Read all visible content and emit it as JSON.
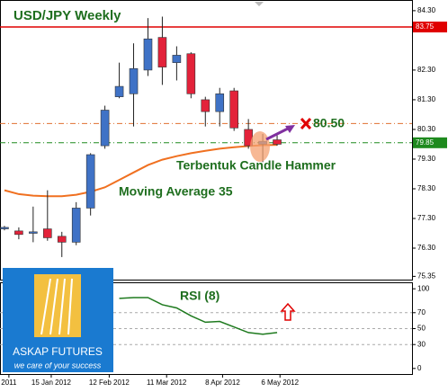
{
  "chart_data": {
    "type": "candlestick",
    "title": "USD/JPY Weekly",
    "xlim": [
      -0.31,
      28.4
    ],
    "ylim": [
      75.21,
      84.66
    ],
    "candles": {
      "open": [
        76.95,
        76.88,
        76.8,
        76.95,
        76.7,
        76.5,
        77.65,
        79.75,
        81.4,
        81.5,
        82.3,
        83.4,
        82.55,
        82.85,
        81.3,
        80.9,
        81.6,
        80.3,
        79.8,
        79.95
      ],
      "close": [
        77.0,
        76.76,
        76.85,
        76.65,
        76.5,
        77.65,
        79.45,
        80.95,
        81.75,
        82.35,
        83.35,
        82.4,
        82.8,
        81.5,
        80.9,
        81.5,
        80.35,
        79.75,
        79.9,
        79.8
      ],
      "high": [
        77.05,
        77.0,
        77.7,
        78.25,
        76.85,
        77.85,
        79.5,
        81.1,
        82.55,
        83.2,
        84.05,
        84.1,
        83.1,
        82.9,
        81.4,
        81.7,
        81.7,
        80.65,
        80.15,
        80.1
      ],
      "low": [
        76.9,
        76.6,
        76.5,
        76.55,
        76.0,
        76.4,
        77.4,
        79.65,
        81.35,
        80.4,
        82.1,
        81.8,
        81.95,
        81.35,
        80.4,
        80.4,
        80.25,
        79.65,
        79.2,
        79.75
      ],
      "up_color": "#3f72c6",
      "down_color": "#e3223a"
    },
    "moving_average": {
      "name": "Moving Average 35",
      "color": "#f07020",
      "values": [
        78.25,
        78.12,
        78.07,
        78.05,
        78.05,
        78.1,
        78.2,
        78.35,
        78.6,
        78.85,
        79.1,
        79.28,
        79.4,
        79.5,
        79.58,
        79.65,
        79.7,
        79.74,
        79.77,
        79.78
      ]
    },
    "yticks": [
      {
        "value": 84.3,
        "label": "84.30"
      },
      {
        "value": 82.3,
        "label": "82.30"
      },
      {
        "value": 81.3,
        "label": "81.30"
      },
      {
        "value": 80.3,
        "label": "80.30"
      },
      {
        "value": 79.3,
        "label": "79.30"
      },
      {
        "value": 78.3,
        "label": "78.30"
      },
      {
        "value": 77.3,
        "label": "77.30"
      },
      {
        "value": 76.3,
        "label": "76.30"
      },
      {
        "value": 75.35,
        "label": "75.35"
      }
    ],
    "levels": [
      {
        "value": 83.75,
        "label": "83.75",
        "color": "#e00000",
        "style": "solid"
      },
      {
        "value": 79.85,
        "label": "79.85",
        "color": "#1e8a1e",
        "style": "dashdot"
      }
    ],
    "target": {
      "value": 80.5,
      "label": "80.50",
      "color": "#e07030"
    },
    "xticks": [
      {
        "value": 0.31,
        "label": "2011"
      },
      {
        "value": 3.26,
        "label": "15 Jan 2012"
      },
      {
        "value": 7.3,
        "label": "12 Feb 2012"
      },
      {
        "value": 11.3,
        "label": "11 Mar 2012"
      },
      {
        "value": 15.2,
        "label": "8 Apr 2012"
      },
      {
        "value": 19.2,
        "label": "6 May 2012"
      }
    ],
    "annotations": [
      "Terbentuk Candle Hammer"
    ],
    "rsi": {
      "name": "RSI (8)",
      "color": "#1e7a1e",
      "ylim": [
        -7,
        107
      ],
      "yticks": [
        100,
        70,
        50,
        30,
        0
      ],
      "grid": [
        70,
        50,
        30
      ],
      "values": [
        null,
        null,
        null,
        null,
        null,
        null,
        null,
        null,
        88,
        89,
        89,
        80,
        76,
        66,
        58,
        59,
        52,
        45,
        43,
        45
      ]
    }
  },
  "logo": {
    "title": "ASKAP FUTURES",
    "tagline": "we care of your success"
  }
}
